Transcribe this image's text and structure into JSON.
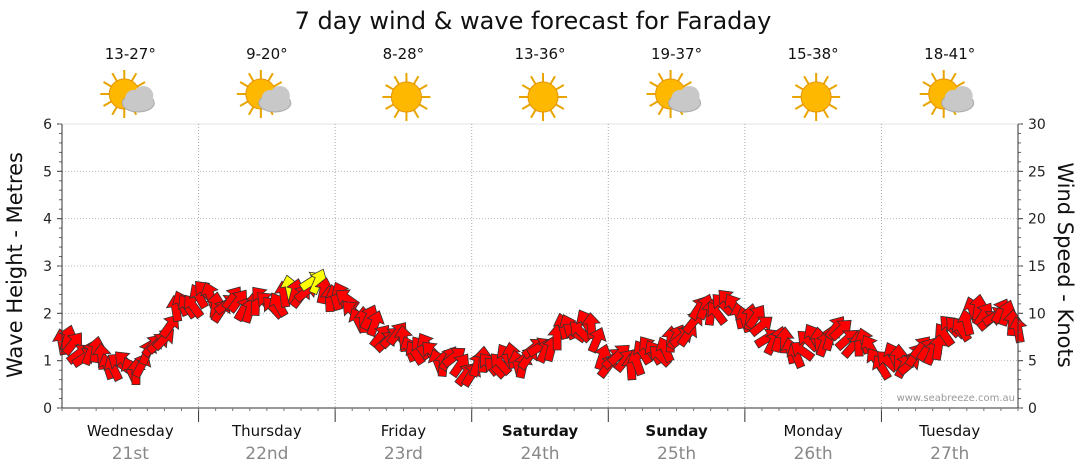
{
  "title": "7 day wind & wave forecast for Faraday",
  "credit": "www.seabreeze.com.au",
  "chart_data": {
    "type": "line",
    "title": "7 day wind & wave forecast for Faraday",
    "ylabel_left": "Wave Height - Metres",
    "ylabel_right": "Wind Speed - Knots",
    "ylim_left": [
      0,
      6
    ],
    "ylim_right": [
      0,
      30
    ],
    "yticks_left": [
      "0",
      "1",
      "2",
      "3",
      "4",
      "5",
      "6"
    ],
    "yticks_right": [
      "0",
      "5",
      "10",
      "15",
      "20",
      "25",
      "30"
    ],
    "grid": true,
    "days": [
      {
        "day": "Wednesday",
        "date": "21st",
        "temp": "13-27°",
        "icon": "partly-cloudy-icon",
        "bold": false
      },
      {
        "day": "Thursday",
        "date": "22nd",
        "temp": "9-20°",
        "icon": "partly-cloudy-icon",
        "bold": false
      },
      {
        "day": "Friday",
        "date": "23rd",
        "temp": "8-28°",
        "icon": "sunny-icon",
        "bold": false
      },
      {
        "day": "Saturday",
        "date": "24th",
        "temp": "13-36°",
        "icon": "sunny-icon",
        "bold": true
      },
      {
        "day": "Sunday",
        "date": "25th",
        "temp": "19-37°",
        "icon": "partly-cloudy-icon",
        "bold": true
      },
      {
        "day": "Monday",
        "date": "26th",
        "temp": "15-38°",
        "icon": "sunny-icon",
        "bold": false
      },
      {
        "day": "Tuesday",
        "date": "27th",
        "temp": "18-41°",
        "icon": "partly-cloudy-icon",
        "bold": false
      }
    ],
    "wind": {
      "name": "Wind Speed - Knots",
      "x_hours": [
        0,
        4,
        8,
        12,
        16,
        20,
        24,
        28,
        32,
        36,
        40,
        44,
        48,
        52,
        56,
        60,
        64,
        68,
        72,
        76,
        80,
        84,
        88,
        92,
        96,
        100,
        104,
        108,
        112,
        116,
        120,
        124,
        128,
        132,
        136,
        140,
        144,
        148,
        152,
        156,
        160,
        164,
        168
      ],
      "knots": [
        7,
        6,
        5,
        4,
        6,
        10,
        12,
        11,
        11,
        11,
        12,
        13,
        12,
        10,
        8,
        7,
        6,
        5,
        4,
        5,
        5,
        6,
        8,
        9,
        5,
        5,
        6,
        7,
        10,
        11,
        10,
        8,
        6,
        7,
        8,
        7,
        5,
        5,
        6,
        8,
        10,
        10,
        9
      ],
      "strong_color": "#ff0000",
      "light_color": "#ffff00"
    }
  }
}
